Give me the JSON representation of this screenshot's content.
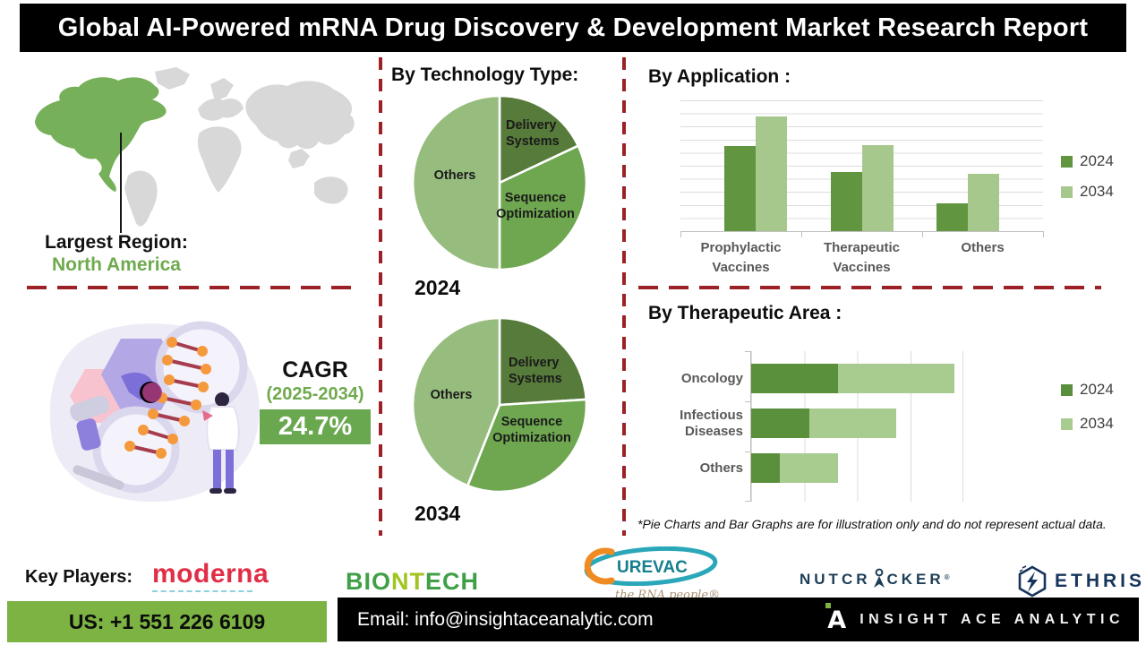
{
  "header": {
    "title": "Global AI-Powered mRNA Drug Discovery & Development Market Research Report"
  },
  "map_section": {
    "largest_region_label": "Largest Region:",
    "largest_region_value": "North America"
  },
  "cagr_section": {
    "label": "CAGR",
    "period": "(2025-2034)",
    "value": "24.7%"
  },
  "technology_section": {
    "heading": "By Technology Type:"
  },
  "application_section": {
    "heading": "By Application :"
  },
  "therapeutic_section": {
    "heading": "By Therapeutic Area :"
  },
  "footnote": "*Pie Charts and Bar Graphs are for illustration only and do not represent actual data.",
  "key_players": {
    "label": "Key Players:",
    "moderna": "moderna",
    "biontech_parts": [
      "BIO",
      "NT",
      "ECH"
    ],
    "curevac_text": "UREVAC",
    "curevac_tagline": "the RNA people®",
    "nutcracker_left": "NUTCR",
    "nutcracker_right": "CKER",
    "reg_mark": "®",
    "ethris": "ETHRIS"
  },
  "footer": {
    "phone": "US: +1 551 226 6109",
    "email": "Email: info@insightaceanalytic.com",
    "brand": "INSIGHT ACE ANALYTIC",
    "logo_letter": "A"
  },
  "colors": {
    "accent_green": "#6faa4e",
    "map_green": "#77b05a",
    "map_gray": "#d8d8d8",
    "dash_red": "#9c2126",
    "cagr_box_green": "#6aa84f",
    "footer_green": "#7cb342",
    "banner_black": "#000000"
  },
  "chart_data": [
    {
      "type": "pie",
      "title": "By Technology Type: 2024",
      "year": "2024",
      "labels": [
        "Delivery Systems",
        "Sequence Optimization",
        "Others"
      ],
      "values": [
        18,
        32,
        50
      ],
      "colors": [
        "#567b3a",
        "#6fa750",
        "#97bd7e"
      ],
      "note": "illustrative - no numeric labels shown"
    },
    {
      "type": "pie",
      "title": "By Technology Type: 2034",
      "year": "2034",
      "labels": [
        "Delivery Systems",
        "Sequence Optimization",
        "Others"
      ],
      "values": [
        24,
        32,
        44
      ],
      "colors": [
        "#567b3a",
        "#6fa750",
        "#97bd7e"
      ],
      "note": "illustrative - no numeric labels shown"
    },
    {
      "type": "bar",
      "title": "By Application :",
      "categories": [
        "Prophylactic Vaccines",
        "Therapeutic Vaccines",
        "Others"
      ],
      "series": [
        {
          "name": "2024",
          "values": [
            65,
            45,
            21
          ]
        },
        {
          "name": "2034",
          "values": [
            88,
            66,
            44
          ]
        }
      ],
      "colors": [
        "#61953f",
        "#a6c88d"
      ],
      "ylim": [
        0,
        100
      ],
      "grid": true,
      "legend_position": "right",
      "note": "illustrative - axis unlabeled, values estimated from gridlines"
    },
    {
      "type": "bar-horizontal-stacked",
      "title": "By Therapeutic Area :",
      "categories": [
        "Oncology",
        "Infectious Diseases",
        "Others"
      ],
      "series": [
        {
          "name": "2024",
          "values": [
            33,
            22,
            11
          ]
        },
        {
          "name": "2034",
          "values": [
            44,
            33,
            22
          ]
        }
      ],
      "colors": [
        "#5a8f3c",
        "#a8cb90"
      ],
      "xlim": [
        0,
        80
      ],
      "grid": true,
      "legend_position": "right",
      "note": "illustrative - axis unlabeled, values estimated from gridlines"
    }
  ]
}
